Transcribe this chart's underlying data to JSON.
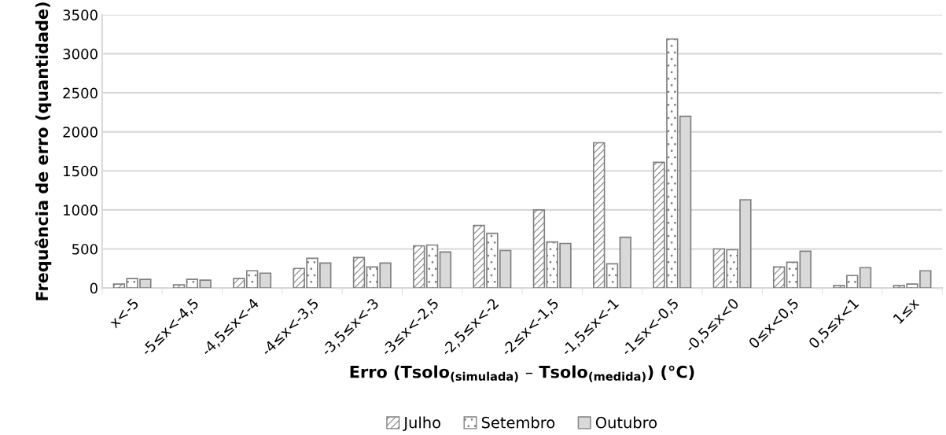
{
  "chart_data": {
    "type": "bar",
    "xlabel": "Erro (Tsolo$_{(simulada)}$ – Tsolo$_{(medida)}$) (°C)",
    "ylabel": "Frequência de erro (quantidade)",
    "categories": [
      "x<-5",
      "-5≤x<-4,5",
      "-4,5≤x<-4",
      "-4≤x<-3,5",
      "-3,5≤x<-3",
      "-3≤x<-2,5",
      "-2,5≤x<-2",
      "-2≤x<-1,5",
      "-1,5≤x<-1",
      "-1≤x<-0,5",
      "-0,5≤x<0",
      "0≤x<0,5",
      "0,5≤x<1",
      "1≤x"
    ],
    "series": [
      {
        "name": "Julho",
        "color": "#808080",
        "values": [
          50,
          40,
          120,
          250,
          390,
          540,
          800,
          1000,
          1860,
          1610,
          500,
          270,
          30,
          30
        ]
      },
      {
        "name": "Setembro",
        "color": "#808080",
        "values": [
          120,
          110,
          220,
          380,
          270,
          550,
          700,
          590,
          310,
          3190,
          490,
          330,
          160,
          50
        ]
      },
      {
        "name": "Outubro",
        "color": "#d9d9d9",
        "values": [
          110,
          100,
          190,
          320,
          320,
          460,
          480,
          570,
          650,
          2200,
          1130,
          470,
          260,
          220
        ]
      }
    ],
    "ylim": [
      0,
      3500
    ],
    "yticks": [
      0,
      500,
      1000,
      1500,
      2000,
      2500,
      3000,
      3500
    ],
    "grid": "y",
    "legend": "bottom"
  }
}
